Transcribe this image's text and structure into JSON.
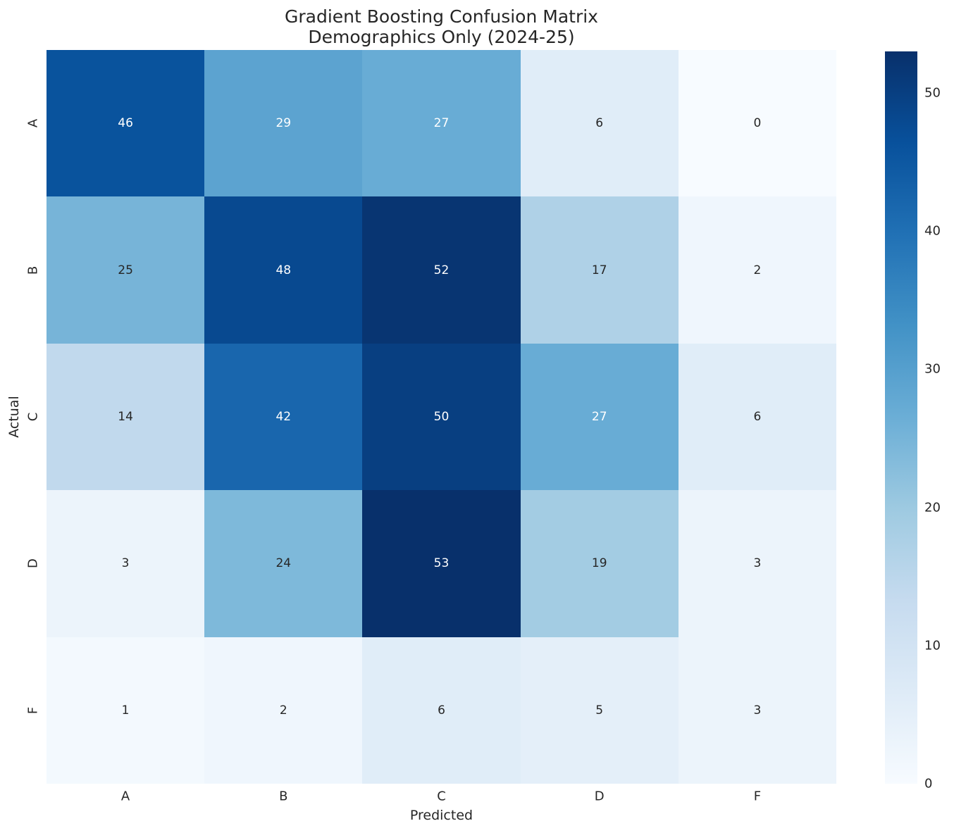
{
  "figure": {
    "background": "#ffffff",
    "text_color": "#262626"
  },
  "title": {
    "line1": "Gradient Boosting Confusion Matrix",
    "line2": "Demographics Only (2024-25)"
  },
  "chart_data": {
    "type": "heatmap",
    "title": "Gradient Boosting Confusion Matrix\nDemographics Only (2024-25)",
    "xlabel": "Predicted",
    "ylabel": "Actual",
    "x_categories": [
      "A",
      "B",
      "C",
      "D",
      "F"
    ],
    "y_categories": [
      "A",
      "B",
      "C",
      "D",
      "F"
    ],
    "matrix": [
      [
        46,
        29,
        27,
        6,
        0
      ],
      [
        25,
        48,
        52,
        17,
        2
      ],
      [
        14,
        42,
        50,
        27,
        6
      ],
      [
        3,
        24,
        53,
        19,
        3
      ],
      [
        1,
        2,
        6,
        5,
        3
      ]
    ],
    "vmin": 0,
    "vmax": 53,
    "grid": false,
    "legend": null,
    "colormap": {
      "name": "Blues",
      "anchors": [
        "#f7fbff",
        "#deebf7",
        "#c6dbef",
        "#9ecae1",
        "#6baed6",
        "#4292c6",
        "#2171b5",
        "#08519c",
        "#08306b"
      ]
    },
    "colorbar": {
      "position": "right",
      "ticks": [
        0,
        10,
        20,
        30,
        40,
        50
      ]
    },
    "annotation_colors": {
      "on_dark": "#ffffff",
      "on_light": "#262626"
    }
  }
}
